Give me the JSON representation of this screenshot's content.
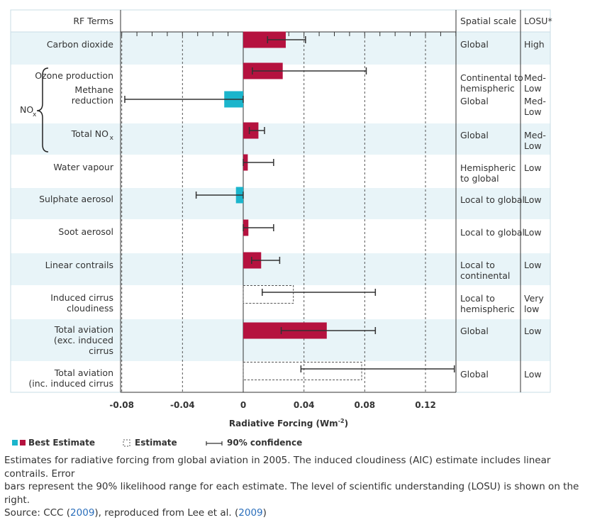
{
  "chart_data": {
    "type": "bar",
    "orientation": "horizontal",
    "xlabel": "Radiative Forcing (Wm",
    "xlabel_sup": "-2",
    "xlabel_end": ")",
    "xlim": [
      -0.08,
      0.14
    ],
    "xticks": [
      "-0.08",
      "-0.04",
      "0",
      "0.04",
      "0.08",
      "0.12"
    ],
    "xtick_values": [
      -0.08,
      -0.04,
      0,
      0.04,
      0.08,
      0.12
    ],
    "grid_x": [
      -0.08,
      -0.04,
      0.04,
      0.08,
      0.12
    ],
    "headers": {
      "terms": "RF Terms",
      "scale": "Spatial scale",
      "losu": "LOSU*"
    },
    "brace_label": "NO",
    "brace_label_sub": "x",
    "rows": [
      {
        "label": [
          "Carbon dioxide"
        ],
        "value": 0.028,
        "low": 0.016,
        "high": 0.041,
        "style": "best",
        "color": "#b5123f",
        "scale": [
          "Global"
        ],
        "losu": [
          "High"
        ],
        "shade": true
      },
      {
        "label": [
          "Ozone production"
        ],
        "value": 0.026,
        "low": 0.006,
        "high": 0.081,
        "style": "best",
        "color": "#b5123f",
        "scale": [
          "Continental to",
          "hemispheric"
        ],
        "losu": [
          "Med-",
          "Low"
        ],
        "shade": false
      },
      {
        "label": [
          "Methane",
          "reduction"
        ],
        "value": -0.0125,
        "low": -0.078,
        "high": 0.0,
        "style": "best",
        "color": "#1bb5cc",
        "scale": [
          "Global"
        ],
        "losu": [
          "Med-",
          "Low"
        ],
        "shade": false
      },
      {
        "label": [
          "Total NO"
        ],
        "label_sub": "x",
        "value": 0.01,
        "low": 0.004,
        "high": 0.014,
        "style": "best",
        "color": "#b5123f",
        "scale": [
          "Global"
        ],
        "losu": [
          "Med-",
          "Low"
        ],
        "shade": true
      },
      {
        "label": [
          "Water vapour"
        ],
        "value": 0.003,
        "low": 0.0,
        "high": 0.02,
        "style": "best",
        "color": "#b5123f",
        "scale": [
          "Hemispheric",
          "to global"
        ],
        "losu": [
          "Low"
        ],
        "shade": false
      },
      {
        "label": [
          "Sulphate aerosol"
        ],
        "value": -0.0048,
        "low": -0.031,
        "high": 0.0,
        "style": "best",
        "color": "#1bb5cc",
        "scale": [
          "Local to global"
        ],
        "losu": [
          "Low"
        ],
        "shade": true
      },
      {
        "label": [
          "Soot aerosol"
        ],
        "value": 0.0034,
        "low": 0.0,
        "high": 0.02,
        "style": "best",
        "color": "#b5123f",
        "scale": [
          "Local to global"
        ],
        "losu": [
          "Low"
        ],
        "shade": false
      },
      {
        "label": [
          "Linear contrails"
        ],
        "value": 0.0118,
        "low": 0.0055,
        "high": 0.024,
        "style": "best",
        "color": "#b5123f",
        "scale": [
          "Local to",
          "continental"
        ],
        "losu": [
          "Low"
        ],
        "shade": true
      },
      {
        "label": [
          "Induced cirrus",
          "cloudiness"
        ],
        "value": 0.033,
        "low": 0.0125,
        "high": 0.087,
        "style": "estimate",
        "color": "#555555",
        "scale": [
          "Local to",
          "hemispheric"
        ],
        "losu": [
          "Very",
          "low"
        ],
        "shade": false
      },
      {
        "label": [
          "Total aviation",
          "(exc. induced",
          "cirrus"
        ],
        "value": 0.055,
        "low": 0.025,
        "high": 0.087,
        "style": "best",
        "color": "#b5123f",
        "scale": [
          "Global"
        ],
        "losu": [
          "Low"
        ],
        "shade": true
      },
      {
        "label": [
          "Total aviation",
          "(inc. induced cirrus"
        ],
        "value": 0.078,
        "low": 0.038,
        "high": 0.139,
        "style": "estimate",
        "color": "#555555",
        "scale": [
          "Global"
        ],
        "losu": [
          "Low"
        ],
        "shade": false
      }
    ],
    "legend": {
      "best": "Best Estimate",
      "estimate": "Estimate",
      "confidence": "90% confidence"
    },
    "colors": {
      "positive": "#b5123f",
      "negative": "#1bb5cc",
      "shade": "#e8f4f8",
      "grid": "#555555"
    }
  },
  "caption": {
    "line1": "Estimates for radiative forcing from global aviation in 2005. The induced cloudiness (AIC) estimate includes linear contrails. Error",
    "line2": "bars represent the 90% likelihood range for each estimate. The level of scientific understanding (LOSU) is shown on the right.",
    "source_prefix": "Source: CCC (",
    "source_year1": "2009",
    "source_mid": "), reproduced from Lee et al. (",
    "source_year2": "2009",
    "source_end": ")"
  }
}
